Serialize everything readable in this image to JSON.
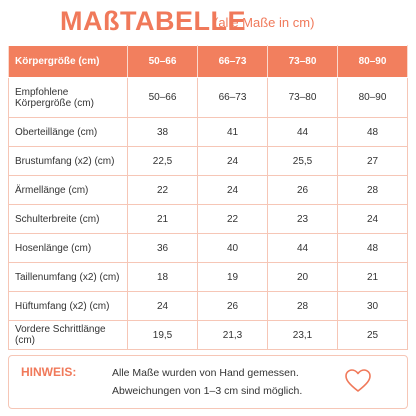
{
  "header": {
    "title": "MAßTABELLE",
    "subtitle": "(alle Maße in cm)"
  },
  "table": {
    "columns": [
      "Körpergröße (cm)",
      "50–66",
      "66–73",
      "73–80",
      "80–90"
    ],
    "rows": [
      [
        "Empfohlene Körpergröße (cm)",
        "50–66",
        "66–73",
        "73–80",
        "80–90"
      ],
      [
        "Oberteillänge (cm)",
        "38",
        "41",
        "44",
        "48"
      ],
      [
        "Brustumfang (x2) (cm)",
        "22,5",
        "24",
        "25,5",
        "27"
      ],
      [
        "Ärmellänge (cm)",
        "22",
        "24",
        "26",
        "28"
      ],
      [
        "Schulterbreite (cm)",
        "21",
        "22",
        "23",
        "24"
      ],
      [
        "Hosenlänge (cm)",
        "36",
        "40",
        "44",
        "48"
      ],
      [
        "Taillenumfang (x2) (cm)",
        "18",
        "19",
        "20",
        "21"
      ],
      [
        "Hüftumfang (x2) (cm)",
        "24",
        "26",
        "28",
        "30"
      ],
      [
        "Vordere Schrittlänge (cm)",
        "19,5",
        "21,3",
        "23,1",
        "25"
      ]
    ]
  },
  "note": {
    "label": "HINWEIS:",
    "lines": [
      "Alle Maße wurden von Hand gemessen.",
      "Abweichungen von 1–3 cm sind möglich."
    ]
  }
}
